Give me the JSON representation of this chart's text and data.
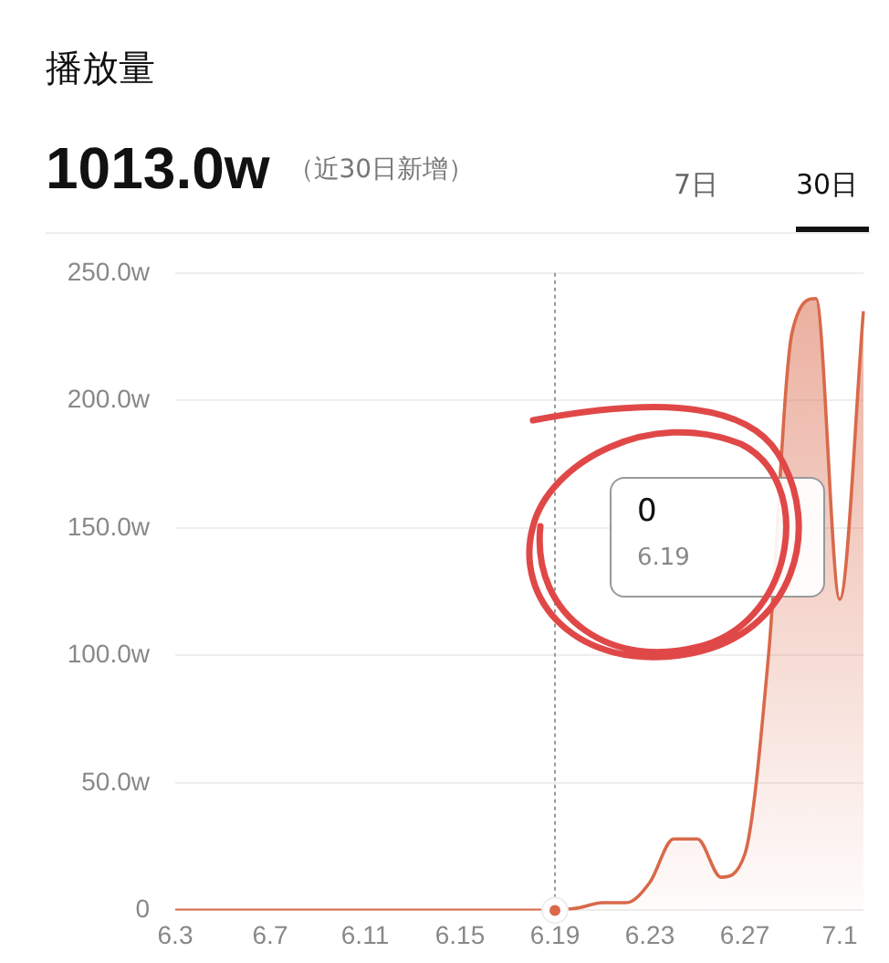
{
  "chart_data": {
    "type": "area",
    "title": "播放量",
    "subtitle": "1013.0w",
    "categories": [
      "6.3",
      null,
      null,
      null,
      "6.7",
      null,
      null,
      null,
      "6.11",
      null,
      null,
      null,
      "6.15",
      null,
      null,
      null,
      "6.19",
      null,
      null,
      null,
      "6.23",
      null,
      null,
      null,
      "6.27",
      null,
      null,
      null,
      "7.1",
      null
    ],
    "series": [
      {
        "color": "#d9694a",
        "values": [
          0,
          0,
          0,
          0,
          0,
          0,
          0,
          0,
          0,
          0,
          0,
          0,
          0,
          0,
          0,
          0,
          0,
          1,
          3,
          3,
          11,
          28,
          28,
          13,
          22,
          100,
          227,
          240,
          122,
          235
        ]
      }
    ],
    "ylim": [
      0,
      250
    ],
    "yticks": [
      0,
      {
        "value": 50,
        "label": "50.0w"
      },
      {
        "value": 100,
        "label": "100.0w"
      },
      {
        "value": 150,
        "label": "150.0w"
      },
      {
        "value": 200,
        "label": "200.0w"
      },
      {
        "value": 250,
        "label": "250.0w"
      }
    ],
    "grid": "y",
    "legend": false,
    "marker": "none",
    "line_style": "solid",
    "annotations": [
      "（近30日新增）",
      "7日",
      "30日",
      "0",
      "6.19"
    ]
  }
}
